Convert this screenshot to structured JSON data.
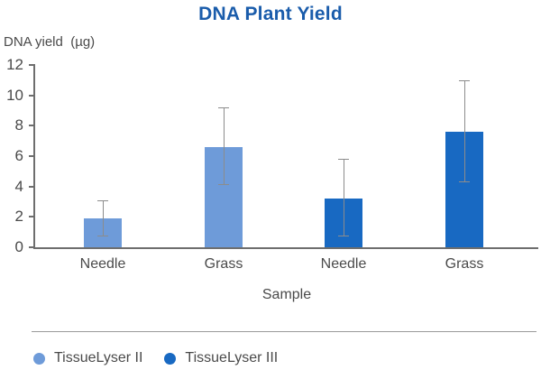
{
  "colors": {
    "title": "#1A5CAB",
    "axis": "#6E6E6E",
    "text": "#4A4A4A",
    "error_bar": "#8C8C8C",
    "divider": "#9A9A9A"
  },
  "chart_data": {
    "type": "bar",
    "title": "DNA Plant Yield",
    "ylabel": "DNA yield  (µg)",
    "xlabel": "Sample",
    "ylim": [
      0,
      12
    ],
    "yticks": [
      0,
      2,
      4,
      6,
      8,
      10,
      12
    ],
    "grid": false,
    "categories": [
      "Needle",
      "Grass",
      "Needle",
      "Grass"
    ],
    "bars": [
      {
        "category": "Needle",
        "series": "TissueLyser II",
        "value": 1.9,
        "error_min": 0.7,
        "error_max": 3.1
      },
      {
        "category": "Grass",
        "series": "TissueLyser II",
        "value": 6.6,
        "error_min": 4.1,
        "error_max": 9.2
      },
      {
        "category": "Needle",
        "series": "TissueLyser III",
        "value": 3.2,
        "error_min": 0.7,
        "error_max": 5.8
      },
      {
        "category": "Grass",
        "series": "TissueLyser III",
        "value": 7.6,
        "error_min": 4.3,
        "error_max": 11.0
      }
    ],
    "legend": [
      {
        "label": "TissueLyser II",
        "color": "#6E9BD9"
      },
      {
        "label": "TissueLyser III",
        "color": "#1869C2"
      }
    ],
    "legend_position": "bottom-left"
  }
}
